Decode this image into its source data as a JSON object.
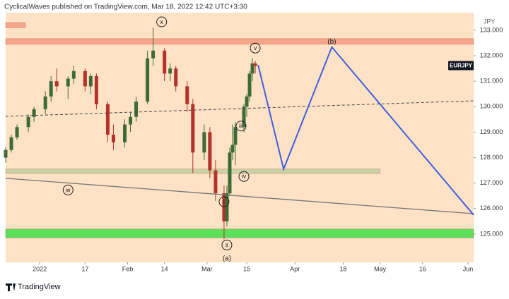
{
  "chart_data": {
    "type": "candlestick",
    "header": "CyclicalWaves published on TradingView.com, Mar 18, 2022 12:42 UTC+3:30",
    "currency": "JPY",
    "symbol": "EURJPY",
    "brand": "TradingView",
    "background": "#fde2c6",
    "up_color": "#3d6b35",
    "down_color": "#b5322a",
    "x": [
      "2021-12-20",
      "2021-12-22",
      "2021-12-24",
      "2021-12-28",
      "2021-12-30",
      "2022-01-03",
      "2022-01-05",
      "2022-01-07",
      "2022-01-11",
      "2022-01-13",
      "2022-01-17",
      "2022-01-19",
      "2022-01-21",
      "2022-01-25",
      "2022-01-27",
      "2022-01-31",
      "2022-02-02",
      "2022-02-04",
      "2022-02-08",
      "2022-02-10",
      "2022-02-14",
      "2022-02-16",
      "2022-02-18",
      "2022-02-22",
      "2022-02-24",
      "2022-02-28",
      "2022-03-02",
      "2022-03-04",
      "2022-03-07",
      "2022-03-08",
      "2022-03-09",
      "2022-03-10",
      "2022-03-11",
      "2022-03-14",
      "2022-03-15",
      "2022-03-16",
      "2022-03-17",
      "2022-03-18"
    ],
    "open": [
      128.0,
      128.3,
      128.8,
      129.2,
      129.6,
      129.9,
      130.4,
      131.0,
      130.8,
      131.1,
      131.4,
      130.8,
      131.2,
      130.1,
      128.9,
      128.6,
      129.3,
      129.6,
      130.2,
      131.9,
      132.2,
      131.3,
      131.5,
      130.8,
      130.1,
      128.2,
      129.0,
      127.5,
      126.6,
      125.5,
      126.6,
      128.2,
      128.5,
      129.2,
      130.0,
      130.4,
      131.3,
      131.7
    ],
    "high": [
      128.4,
      128.9,
      129.3,
      129.7,
      130.0,
      130.6,
      131.2,
      131.5,
      131.2,
      131.6,
      131.5,
      131.3,
      131.3,
      130.2,
      129.3,
      129.5,
      129.8,
      130.4,
      132.2,
      133.1,
      132.3,
      131.7,
      131.6,
      131.0,
      130.3,
      129.3,
      129.2,
      127.9,
      126.9,
      126.9,
      128.4,
      129.3,
      129.4,
      130.1,
      130.5,
      131.4,
      131.9,
      131.8
    ],
    "low": [
      127.8,
      128.2,
      128.7,
      129.0,
      129.4,
      129.7,
      130.2,
      130.6,
      130.3,
      130.9,
      130.6,
      130.5,
      129.9,
      128.6,
      128.3,
      128.4,
      129.0,
      129.4,
      130.1,
      131.6,
      131.0,
      131.0,
      130.6,
      129.8,
      127.4,
      127.9,
      127.2,
      126.3,
      124.8,
      125.3,
      126.5,
      127.9,
      127.7,
      129.0,
      129.6,
      130.2,
      131.0,
      131.3
    ],
    "close": [
      128.3,
      128.8,
      129.2,
      129.6,
      129.9,
      130.4,
      131.0,
      130.8,
      131.1,
      131.4,
      130.8,
      131.2,
      130.1,
      128.9,
      128.6,
      129.3,
      129.6,
      130.2,
      131.9,
      132.2,
      131.3,
      131.5,
      130.8,
      130.1,
      128.2,
      129.0,
      127.5,
      126.6,
      125.5,
      126.6,
      128.2,
      128.5,
      129.2,
      130.0,
      130.4,
      131.3,
      131.7,
      131.6
    ],
    "xlim": [
      "2021-12-20",
      "2022-06-03"
    ],
    "ylim": [
      123.89,
      133.69
    ],
    "yticks": [
      {
        "value": 125,
        "label": "125.000"
      },
      {
        "value": 126,
        "label": "126.000"
      },
      {
        "value": 127,
        "label": "127.000"
      },
      {
        "value": 128,
        "label": "128.000"
      },
      {
        "value": 129,
        "label": "129.000"
      },
      {
        "value": 130,
        "label": "130.000"
      },
      {
        "value": 131,
        "label": "131.000"
      },
      {
        "value": 132,
        "label": "132.000"
      },
      {
        "value": 133,
        "label": "133.000"
      }
    ],
    "xticks": [
      {
        "value": "2022-01-01",
        "label": "2022"
      },
      {
        "value": "2022-01-17",
        "label": "17"
      },
      {
        "value": "2022-02-01",
        "label": "Feb"
      },
      {
        "value": "2022-02-14",
        "label": "14"
      },
      {
        "value": "2022-03-01",
        "label": "Mar"
      },
      {
        "value": "2022-03-15",
        "label": "15"
      },
      {
        "value": "2022-04-01",
        "label": "Apr"
      },
      {
        "value": "2022-04-18",
        "label": "18"
      },
      {
        "value": "2022-05-01",
        "label": "May"
      },
      {
        "value": "2022-05-16",
        "label": "16"
      },
      {
        "value": "2022-06-01",
        "label": "Jun"
      }
    ],
    "zones": [
      {
        "from": 132.45,
        "to": 132.67,
        "start": "2021-12-20",
        "end": "2022-06-03",
        "color": "#f4a58a"
      },
      {
        "from": 133.1,
        "to": 133.3,
        "start": "2021-12-20",
        "end": "2021-12-27",
        "color": "#f4a58a"
      },
      {
        "from": 127.38,
        "to": 127.55,
        "start": "2021-12-20",
        "end": "2022-05-01",
        "color": "#c9d3a5"
      },
      {
        "from": 124.85,
        "to": 125.2,
        "start": "2021-12-20",
        "end": "2022-06-03",
        "color": "#5be05b"
      }
    ],
    "lines": [
      {
        "x": [
          "2021-12-20",
          "2022-06-03"
        ],
        "y": [
          129.62,
          130.23
        ],
        "color": "#444444",
        "dash": true,
        "width": 1
      },
      {
        "x": [
          "2021-12-20",
          "2022-06-03"
        ],
        "y": [
          127.19,
          125.8
        ],
        "color": "#777777",
        "dash": false,
        "width": 1.3
      },
      {
        "x": [
          "2022-03-19",
          "2022-03-28",
          "2022-04-14",
          "2022-06-03"
        ],
        "y": [
          131.64,
          127.55,
          132.34,
          125.75
        ],
        "color": "#3f5fe0",
        "dash": false,
        "width": 2
      }
    ],
    "annotations": [
      {
        "text": "x",
        "x": "2022-02-13",
        "y": 133.33,
        "circled": true
      },
      {
        "text": "v",
        "x": "2022-03-18",
        "y": 132.3,
        "circled": true
      },
      {
        "text": "(b)",
        "x": "2022-04-14",
        "y": 132.56,
        "circled": false
      },
      {
        "text": "iii",
        "x": "2022-03-13",
        "y": 129.24,
        "circled": true
      },
      {
        "text": "iv",
        "x": "2022-03-14",
        "y": 127.26,
        "circled": true
      },
      {
        "text": "i",
        "x": "2022-03-07",
        "y": 126.27,
        "circled": true
      },
      {
        "text": "ii",
        "x": "2022-03-08",
        "y": 124.57,
        "circled": true
      },
      {
        "text": "(a)",
        "x": "2022-03-08",
        "y": 124.05,
        "circled": false
      },
      {
        "text": "w",
        "x": "2022-01-11",
        "y": 126.73,
        "circled": true
      }
    ]
  }
}
